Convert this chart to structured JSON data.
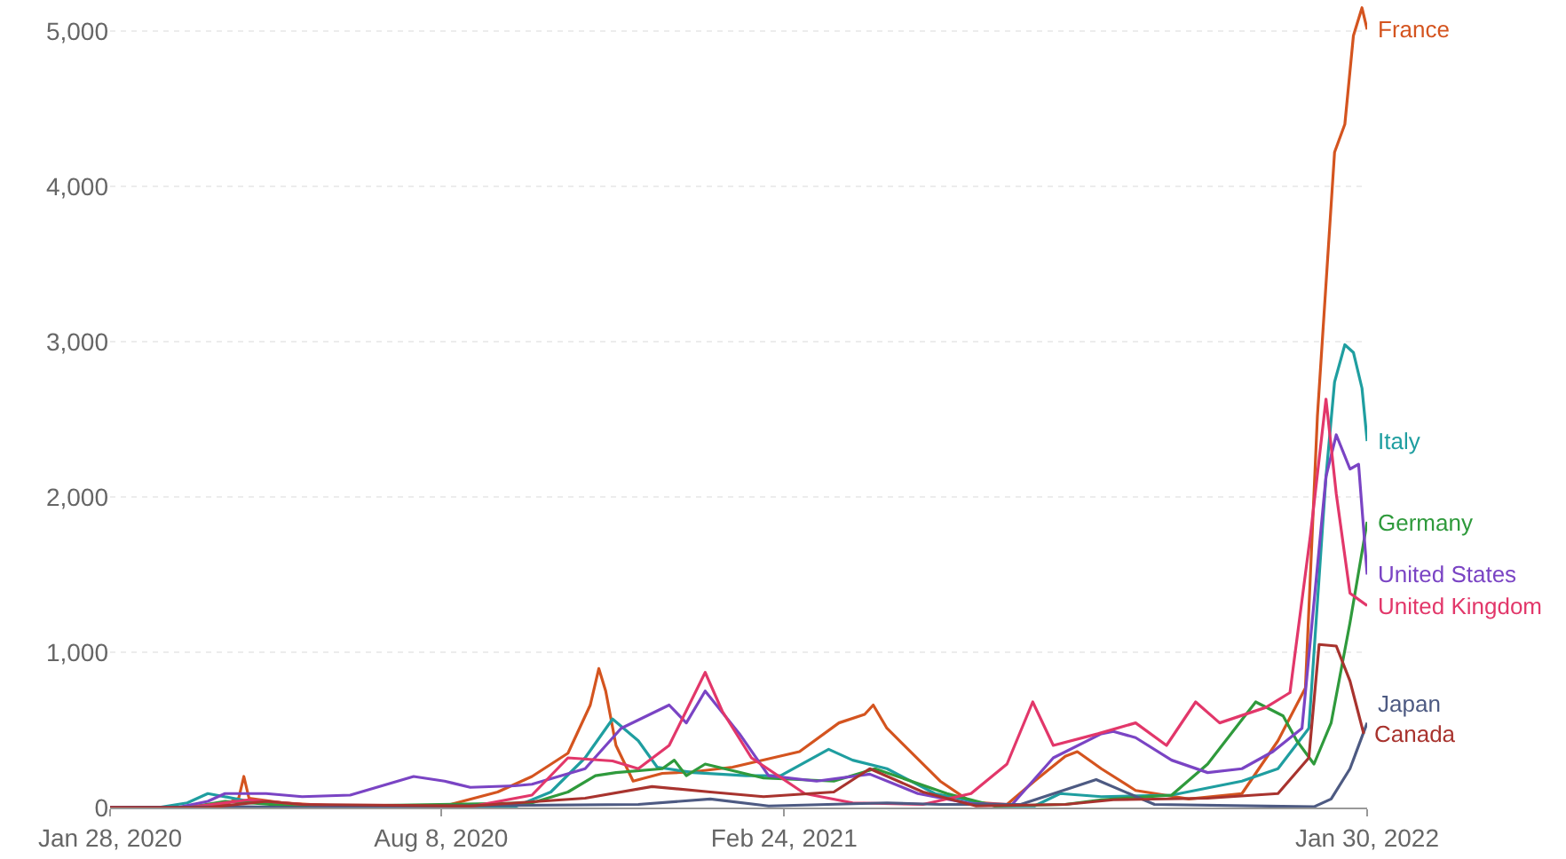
{
  "chart_data": {
    "type": "line",
    "xlim": [
      "2020-01-28",
      "2022-01-30"
    ],
    "xticks": [
      {
        "value": "2020-01-28",
        "label": "Jan 28, 2020"
      },
      {
        "value": "2020-08-08",
        "label": "Aug 8, 2020"
      },
      {
        "value": "2021-02-24",
        "label": "Feb 24, 2021"
      },
      {
        "value": "2022-01-30",
        "label": "Jan 30, 2022"
      }
    ],
    "ylim": [
      0,
      5200
    ],
    "yticks": [
      0,
      {
        "value": 1000,
        "label": "1,000"
      },
      {
        "value": 2000,
        "label": "2,000"
      },
      {
        "value": 3000,
        "label": "3,000"
      },
      {
        "value": 4000,
        "label": "4,000"
      },
      {
        "value": 5000,
        "label": "5,000"
      }
    ],
    "grid": "y",
    "legend": false,
    "marker": "none",
    "line_style": "solid",
    "series": [
      {
        "name": "France",
        "color": "#d4541f",
        "x": [
          "2020-01-28",
          "2020-03-07",
          "2020-04-04",
          "2020-04-12",
          "2020-04-15",
          "2020-04-18",
          "2020-05-08",
          "2020-06-16",
          "2020-08-10",
          "2020-09-10",
          "2020-09-30",
          "2020-10-21",
          "2020-11-03",
          "2020-11-08",
          "2020-11-12",
          "2020-11-18",
          "2020-11-28",
          "2020-12-15",
          "2021-01-02",
          "2021-01-25",
          "2021-03-05",
          "2021-03-28",
          "2021-04-12",
          "2021-04-17",
          "2021-04-25",
          "2021-05-26",
          "2021-06-13",
          "2021-07-04",
          "2021-07-20",
          "2021-08-07",
          "2021-08-14",
          "2021-08-28",
          "2021-09-17",
          "2021-10-18",
          "2021-11-18",
          "2021-12-09",
          "2021-12-25",
          "2022-01-01",
          "2022-01-11",
          "2022-01-17",
          "2022-01-22",
          "2022-01-27",
          "2022-01-30"
        ],
        "values": [
          0,
          0,
          20,
          60,
          200,
          60,
          30,
          5,
          10,
          100,
          200,
          350,
          660,
          895,
          750,
          400,
          170,
          220,
          230,
          260,
          360,
          545,
          600,
          660,
          510,
          170,
          35,
          20,
          170,
          330,
          360,
          250,
          110,
          55,
          90,
          430,
          770,
          2520,
          4220,
          4400,
          4970,
          5150,
          5010
        ]
      },
      {
        "name": "Italy",
        "color": "#1f9ea0",
        "x": [
          "2020-01-28",
          "2020-02-25",
          "2020-03-13",
          "2020-03-25",
          "2020-04-18",
          "2020-05-19",
          "2020-06-16",
          "2020-09-20",
          "2020-09-30",
          "2020-10-11",
          "2020-10-31",
          "2020-11-16",
          "2020-12-01",
          "2020-12-12",
          "2021-01-02",
          "2021-02-02",
          "2021-02-22",
          "2021-03-22",
          "2021-04-05",
          "2021-04-25",
          "2021-05-23",
          "2021-06-27",
          "2021-07-20",
          "2021-08-04",
          "2021-08-28",
          "2021-10-08",
          "2021-11-18",
          "2021-12-09",
          "2021-12-27",
          "2022-01-06",
          "2022-01-11",
          "2022-01-17",
          "2022-01-22",
          "2022-01-27",
          "2022-01-30"
        ],
        "values": [
          0,
          0,
          30,
          90,
          40,
          10,
          2,
          5,
          50,
          100,
          320,
          570,
          430,
          260,
          225,
          205,
          205,
          375,
          305,
          250,
          90,
          10,
          10,
          90,
          70,
          80,
          170,
          250,
          510,
          2130,
          2740,
          2980,
          2930,
          2700,
          2360
        ]
      },
      {
        "name": "Germany",
        "color": "#2f9a3c",
        "x": [
          "2020-01-28",
          "2020-03-13",
          "2020-04-04",
          "2020-04-18",
          "2020-05-19",
          "2020-09-30",
          "2020-10-21",
          "2020-11-06",
          "2020-11-18",
          "2020-12-15",
          "2020-12-22",
          "2020-12-29",
          "2021-01-09",
          "2021-02-12",
          "2021-03-25",
          "2021-04-18",
          "2021-05-30",
          "2021-06-27",
          "2021-08-07",
          "2021-08-28",
          "2021-10-08",
          "2021-10-29",
          "2021-11-26",
          "2021-12-12",
          "2021-12-20",
          "2021-12-30",
          "2022-01-09",
          "2022-01-20",
          "2022-01-30"
        ],
        "values": [
          0,
          0,
          40,
          30,
          5,
          30,
          100,
          205,
          225,
          250,
          305,
          205,
          280,
          190,
          170,
          250,
          90,
          10,
          20,
          50,
          80,
          280,
          680,
          590,
          430,
          280,
          545,
          1190,
          1840
        ]
      },
      {
        "name": "United States",
        "color": "#7a44c4",
        "x": [
          "2020-01-28",
          "2020-03-07",
          "2020-03-25",
          "2020-04-04",
          "2020-04-28",
          "2020-05-19",
          "2020-06-16",
          "2020-07-23",
          "2020-08-10",
          "2020-08-25",
          "2020-09-20",
          "2020-09-30",
          "2020-10-31",
          "2020-11-21",
          "2020-12-19",
          "2020-12-29",
          "2021-01-09",
          "2021-01-29",
          "2021-02-15",
          "2021-03-15",
          "2021-04-15",
          "2021-05-13",
          "2021-06-13",
          "2021-07-07",
          "2021-07-31",
          "2021-08-28",
          "2021-09-04",
          "2021-09-17",
          "2021-10-08",
          "2021-10-29",
          "2021-11-18",
          "2021-12-06",
          "2021-12-23",
          "2022-01-06",
          "2022-01-12",
          "2022-01-20",
          "2022-01-25",
          "2022-01-30"
        ],
        "values": [
          0,
          0,
          40,
          90,
          90,
          70,
          80,
          200,
          170,
          130,
          140,
          150,
          250,
          510,
          660,
          545,
          750,
          475,
          205,
          170,
          215,
          90,
          25,
          20,
          320,
          475,
          490,
          450,
          305,
          225,
          250,
          360,
          510,
          2130,
          2400,
          2180,
          2210,
          1500
        ]
      },
      {
        "name": "United Kingdom",
        "color": "#e2376a",
        "x": [
          "2020-01-28",
          "2020-03-13",
          "2020-04-18",
          "2020-05-19",
          "2020-06-16",
          "2020-08-25",
          "2020-09-30",
          "2020-10-21",
          "2020-11-16",
          "2020-12-01",
          "2020-12-19",
          "2021-01-09",
          "2021-01-19",
          "2021-02-05",
          "2021-03-08",
          "2021-04-05",
          "2021-05-16",
          "2021-06-13",
          "2021-07-04",
          "2021-07-19",
          "2021-07-31",
          "2021-08-26",
          "2021-09-17",
          "2021-10-05",
          "2021-10-22",
          "2021-11-05",
          "2021-12-02",
          "2021-12-16",
          "2021-12-28",
          "2022-01-06",
          "2022-01-12",
          "2022-01-20",
          "2022-01-30"
        ],
        "values": [
          0,
          0,
          50,
          20,
          10,
          5,
          80,
          320,
          300,
          250,
          400,
          870,
          620,
          320,
          90,
          30,
          20,
          90,
          280,
          680,
          400,
          475,
          545,
          400,
          680,
          545,
          645,
          740,
          1760,
          2630,
          2020,
          1380,
          1300
        ]
      },
      {
        "name": "Japan",
        "color": "#4d5a82",
        "x": [
          "2020-01-28",
          "2020-04-15",
          "2020-05-19",
          "2020-08-10",
          "2020-12-01",
          "2021-01-12",
          "2021-02-15",
          "2021-04-25",
          "2021-05-26",
          "2021-07-12",
          "2021-08-25",
          "2021-09-28",
          "2021-12-30",
          "2022-01-09",
          "2022-01-20",
          "2022-01-30"
        ],
        "values": [
          0,
          5,
          0,
          10,
          20,
          55,
          10,
          30,
          20,
          20,
          180,
          20,
          5,
          55,
          250,
          545
        ]
      },
      {
        "name": "Canada",
        "color": "#a8332e",
        "x": [
          "2020-01-28",
          "2020-03-25",
          "2020-04-28",
          "2020-05-19",
          "2020-08-25",
          "2020-10-31",
          "2020-12-09",
          "2021-01-12",
          "2021-02-12",
          "2021-03-25",
          "2021-04-15",
          "2021-05-16",
          "2021-06-16",
          "2021-08-07",
          "2021-09-04",
          "2021-10-29",
          "2021-12-09",
          "2021-12-27",
          "2022-01-02",
          "2022-01-12",
          "2022-01-20",
          "2022-01-28"
        ],
        "values": [
          0,
          0,
          40,
          20,
          10,
          60,
          135,
          100,
          70,
          100,
          250,
          100,
          10,
          20,
          50,
          60,
          90,
          320,
          1050,
          1040,
          815,
          475
        ]
      }
    ]
  }
}
